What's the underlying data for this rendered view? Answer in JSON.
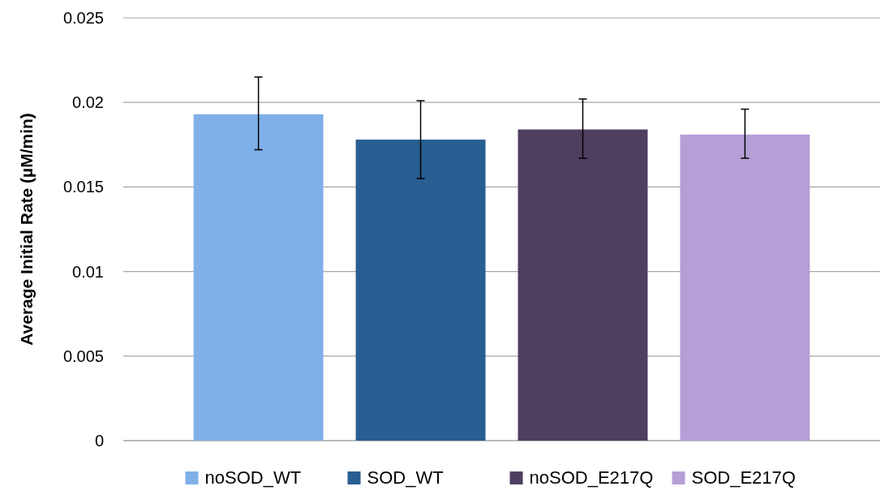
{
  "chart_data": {
    "type": "bar",
    "ylabel": "Average Initial Rate (µM/min)",
    "categories": [
      null
    ],
    "series": [
      {
        "name": "noSOD_WT",
        "color": "#7fb0e8",
        "values": [
          0.0193
        ],
        "errors": [
          [
            0.0172,
            0.0215
          ]
        ]
      },
      {
        "name": "SOD_WT",
        "color": "#285e91",
        "values": [
          0.0178
        ],
        "errors": [
          [
            0.0155,
            0.0201
          ]
        ]
      },
      {
        "name": "noSOD_E217Q",
        "color": "#4e3f60",
        "values": [
          0.0184
        ],
        "errors": [
          [
            0.0167,
            0.0202
          ]
        ]
      },
      {
        "name": "SOD_E217Q",
        "color": "#b49fd6",
        "values": [
          0.0181
        ],
        "errors": [
          [
            0.0167,
            0.0196
          ]
        ]
      }
    ],
    "ylim": [
      0,
      0.025
    ],
    "yticks": [
      0,
      0.005,
      0.01,
      0.015,
      0.02,
      0.025
    ],
    "grid": "y",
    "legend": "bottom"
  }
}
